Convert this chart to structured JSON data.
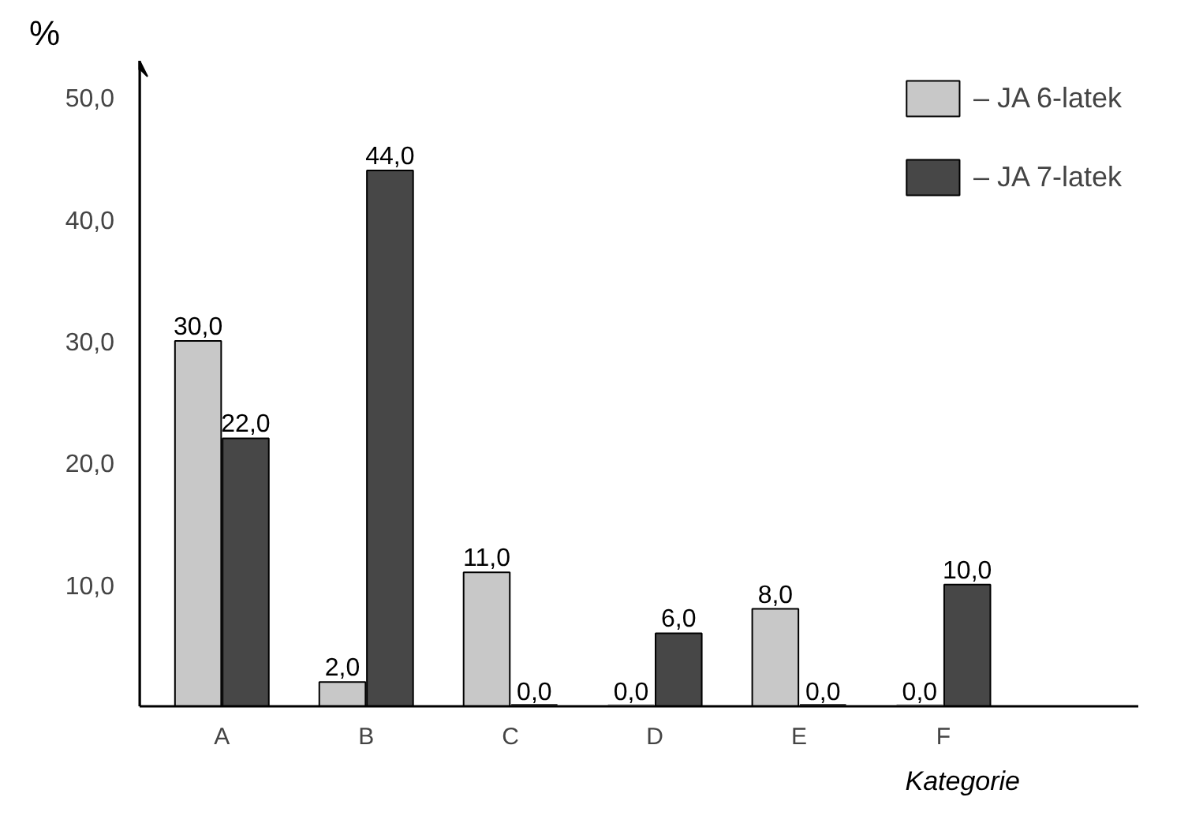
{
  "chart_data": {
    "type": "bar",
    "ylabel": "%",
    "xlabel": "Kategorie",
    "categories": [
      "A",
      "B",
      "C",
      "D",
      "E",
      "F"
    ],
    "series": [
      {
        "name": "– JA 6-latek",
        "color": "#c8c8c8",
        "values": [
          30,
          2,
          11,
          0,
          8,
          0
        ],
        "value_labels": [
          "30,0",
          "2,0",
          "11,0",
          "0,0",
          "8,0",
          "0,0"
        ]
      },
      {
        "name": "– JA 7-latek",
        "color": "#474747",
        "values": [
          22,
          44,
          0,
          6,
          0,
          10
        ],
        "value_labels": [
          "22,0",
          "44,0",
          "0,0",
          "6,0",
          "0,0",
          "10,0"
        ]
      }
    ],
    "ylim": [
      0,
      53
    ],
    "yticks": [
      {
        "value": 10,
        "label": "10,0"
      },
      {
        "value": 20,
        "label": "20,0"
      },
      {
        "value": 30,
        "label": "30,0"
      },
      {
        "value": 40,
        "label": "40,0"
      },
      {
        "value": 50,
        "label": "50,0"
      }
    ],
    "grid": false,
    "legend": "top right"
  }
}
